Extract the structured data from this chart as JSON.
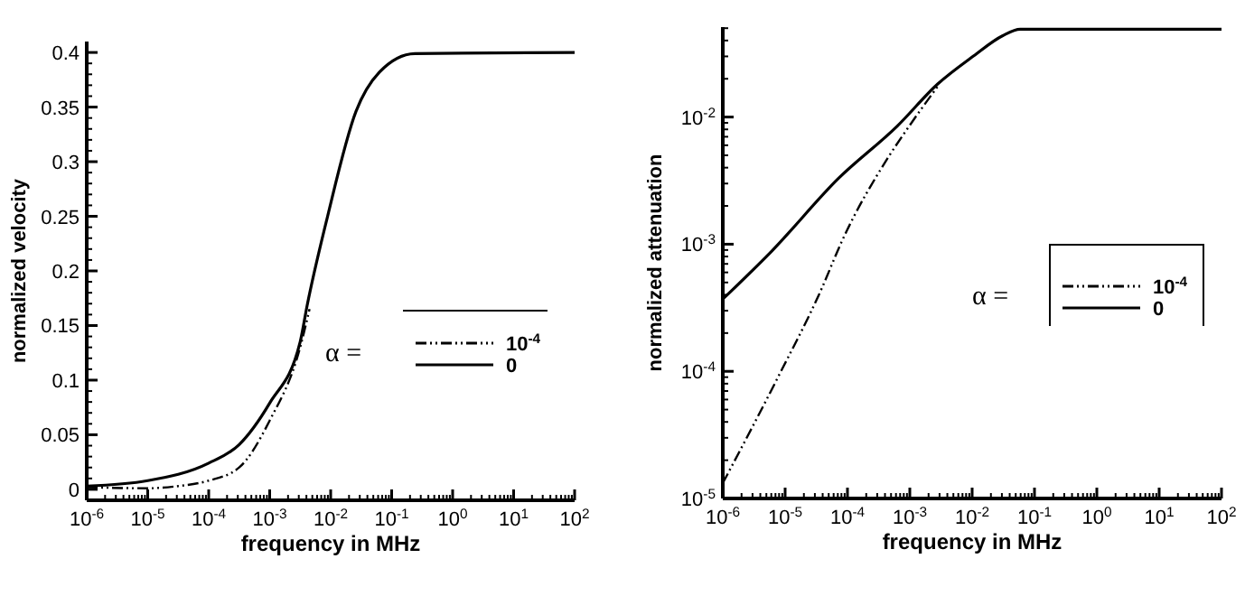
{
  "chart_data": [
    {
      "type": "line",
      "xlabel": "frequency in MHz",
      "ylabel": "normalized velocity",
      "legend_title": "α =",
      "legend": "bottom right",
      "log": "x",
      "xlim": [
        1e-06,
        100
      ],
      "ylim": [
        -0.01,
        0.41
      ],
      "xticks": [
        {
          "value": 1e-06,
          "label": "10$^{-6}$"
        },
        {
          "value": 1e-05,
          "label": "10$^{-5}$"
        },
        {
          "value": 0.0001,
          "label": "10$^{-4}$"
        },
        {
          "value": 0.001,
          "label": "10$^{-3}$"
        },
        {
          "value": 0.01,
          "label": "10$^{-2}$"
        },
        {
          "value": 0.1,
          "label": "10$^{-1}$"
        },
        {
          "value": 1,
          "label": "10$^{0}$"
        },
        {
          "value": 10,
          "label": "10$^{1}$"
        },
        {
          "value": 100,
          "label": "10$^{2}$"
        }
      ],
      "yticks": [
        0,
        0.05,
        0.1,
        0.15,
        0.2,
        0.25,
        0.3,
        0.35,
        0.4
      ],
      "series": [
        {
          "name": "10$^{-4}$",
          "color": "#000000",
          "line_style": "dashdot",
          "x": [
            1e-06,
            1e-05,
            3.16e-05,
            0.0001,
            0.000316,
            0.001,
            0.00316,
            0.0045
          ],
          "values": [
            0.002,
            0.001,
            0.003,
            0.008,
            0.02,
            0.063,
            0.13,
            0.165
          ]
        },
        {
          "name": "0",
          "color": "#000000",
          "line_style": "solid",
          "x": [
            1e-06,
            1e-05,
            0.0001,
            0.000316,
            0.001,
            0.00316,
            0.0041,
            0.0089,
            0.026,
            0.063,
            0.24,
            100
          ],
          "values": [
            0.003,
            0.008,
            0.024,
            0.041,
            0.079,
            0.135,
            0.168,
            0.25,
            0.346,
            0.382,
            0.399,
            0.4
          ]
        }
      ]
    },
    {
      "type": "line",
      "xlabel": "frequency in MHz",
      "ylabel": "normalized attenuation",
      "legend_title": "α =",
      "legend": "right",
      "log": "xy",
      "xlim": [
        1e-06,
        100
      ],
      "ylim": [
        1e-05,
        0.051
      ],
      "xticks": [
        {
          "value": 1e-06,
          "label": "10$^{-6}$"
        },
        {
          "value": 1e-05,
          "label": "10$^{-5}$"
        },
        {
          "value": 0.0001,
          "label": "10$^{-4}$"
        },
        {
          "value": 0.001,
          "label": "10$^{-3}$"
        },
        {
          "value": 0.01,
          "label": "10$^{-2}$"
        },
        {
          "value": 0.1,
          "label": "10$^{-1}$"
        },
        {
          "value": 1,
          "label": "10$^{0}$"
        },
        {
          "value": 10,
          "label": "10$^{1}$"
        },
        {
          "value": 100,
          "label": "10$^{2}$"
        }
      ],
      "yticks": [
        {
          "value": 1e-05,
          "label": "10$^{-5}$"
        },
        {
          "value": 0.0001,
          "label": "10$^{-4}$"
        },
        {
          "value": 0.001,
          "label": "10$^{-3}$"
        },
        {
          "value": 0.01,
          "label": "10$^{-2}$"
        }
      ],
      "series": [
        {
          "name": "10$^{-4}$",
          "color": "#000000",
          "line_style": "dashdot",
          "x": [
            1e-06,
            7.6e-06,
            3.8e-05,
            8.1e-05,
            0.00046,
            0.00098,
            0.0028
          ],
          "values": [
            1.32e-05,
            8.9e-05,
            0.00044,
            0.00105,
            0.0049,
            0.0085,
            0.0174
          ]
        },
        {
          "name": "0",
          "color": "#000000",
          "line_style": "solid",
          "x": [
            1e-06,
            6.2e-06,
            7.2e-05,
            0.00063,
            0.0028,
            0.0105,
            0.031,
            0.059,
            100
          ],
          "values": [
            0.00037,
            0.00089,
            0.0033,
            0.0085,
            0.0182,
            0.0302,
            0.0437,
            0.049,
            0.049
          ]
        }
      ]
    }
  ]
}
